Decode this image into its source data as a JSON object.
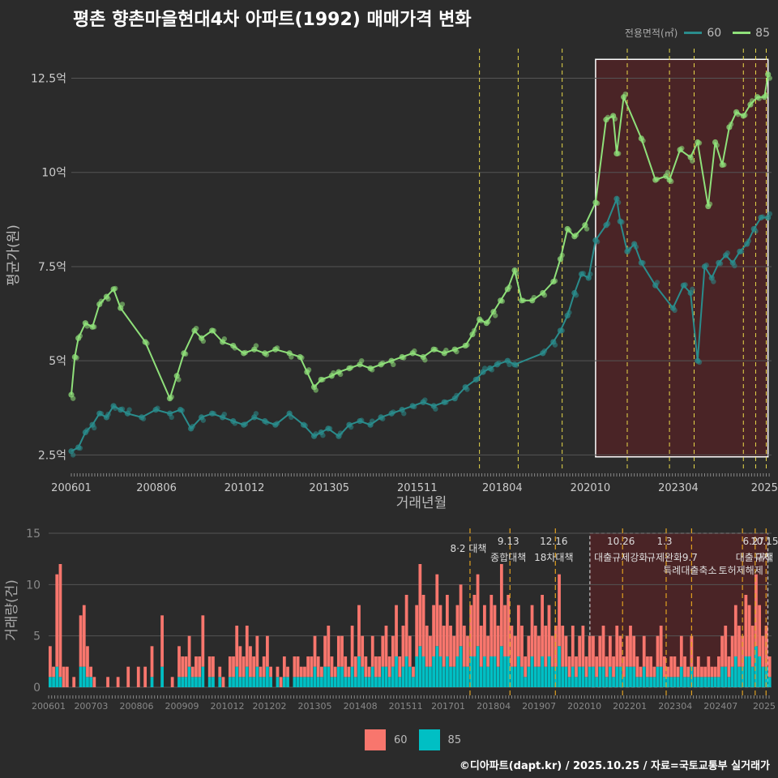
{
  "title": "평촌 향촌마을현대4차 아파트(1992) 매매가격 변화",
  "legend": {
    "title": "전용면적(㎡)",
    "items": [
      {
        "label": "60",
        "line_color": "#2a8c8c",
        "bar_color": "#f8766d"
      },
      {
        "label": "85",
        "line_color": "#8fe07a",
        "bar_color": "#00bfc4"
      }
    ]
  },
  "footer": "©디아파트(dapt.kr) / 2025.10.25 / 자료=국토교통부 실거래가",
  "chart_data": [
    {
      "type": "line",
      "title": "평균가(원) over 거래년월",
      "xlabel": "거래년월",
      "ylabel": "평균가(원)",
      "ylim": [
        2.1,
        13.5
      ],
      "yticks": [
        2.5,
        5,
        7.5,
        10,
        12.5
      ],
      "ytick_labels": [
        "2.5억",
        "5억",
        "7.5억",
        "10억",
        "12.5억"
      ],
      "xticks": [
        "200601",
        "200806",
        "201012",
        "201305",
        "201511",
        "201804",
        "202010",
        "202304",
        "2025"
      ],
      "highlight_region": {
        "start": 2020.9,
        "end": 2025.8
      },
      "policy_dates": [
        2017.6,
        2018.7,
        2019.95,
        2021.8,
        2023.0,
        2023.7,
        2025.1,
        2025.45,
        2025.75
      ],
      "series": [
        {
          "name": "60",
          "x": [
            2006.0,
            2006.2,
            2006.4,
            2006.6,
            2006.8,
            2007.0,
            2007.2,
            2007.4,
            2007.6,
            2008.0,
            2008.4,
            2008.8,
            2009.1,
            2009.4,
            2009.7,
            2010.0,
            2010.3,
            2010.6,
            2010.9,
            2011.2,
            2011.5,
            2011.8,
            2012.2,
            2012.6,
            2012.9,
            2013.1,
            2013.3,
            2013.6,
            2013.9,
            2014.2,
            2014.5,
            2014.8,
            2015.1,
            2015.4,
            2015.7,
            2016.0,
            2016.3,
            2016.6,
            2016.9,
            2017.2,
            2017.5,
            2017.7,
            2017.9,
            2018.1,
            2018.4,
            2018.6,
            2019.4,
            2019.7,
            2019.9,
            2020.1,
            2020.3,
            2020.5,
            2020.7,
            2020.9,
            2021.2,
            2021.5,
            2021.6,
            2021.8,
            2022.0,
            2022.2,
            2022.6,
            2023.1,
            2023.4,
            2023.6,
            2023.8,
            2024.0,
            2024.2,
            2024.4,
            2024.6,
            2024.8,
            2025.0,
            2025.2,
            2025.4,
            2025.6,
            2025.8
          ],
          "values": [
            2.6,
            2.7,
            3.1,
            3.3,
            3.6,
            3.5,
            3.8,
            3.7,
            3.6,
            3.5,
            3.7,
            3.6,
            3.7,
            3.2,
            3.5,
            3.6,
            3.5,
            3.4,
            3.3,
            3.5,
            3.4,
            3.3,
            3.6,
            3.3,
            3.0,
            3.1,
            3.2,
            3.0,
            3.3,
            3.4,
            3.3,
            3.5,
            3.6,
            3.7,
            3.8,
            3.9,
            3.8,
            3.9,
            4.0,
            4.3,
            4.5,
            4.7,
            4.8,
            4.9,
            5.0,
            4.9,
            5.2,
            5.5,
            5.8,
            6.2,
            6.8,
            7.3,
            7.2,
            8.2,
            8.6,
            9.3,
            8.7,
            7.9,
            8.1,
            7.6,
            7.0,
            6.4,
            7.0,
            6.8,
            5.0,
            7.5,
            7.2,
            7.6,
            7.8,
            7.6,
            7.9,
            8.1,
            8.5,
            8.8,
            8.8
          ]
        },
        {
          "name": "85",
          "x": [
            2006.0,
            2006.1,
            2006.2,
            2006.4,
            2006.6,
            2006.8,
            2007.0,
            2007.2,
            2007.4,
            2008.1,
            2008.8,
            2009.0,
            2009.2,
            2009.5,
            2009.7,
            2010.0,
            2010.3,
            2010.6,
            2010.9,
            2011.2,
            2011.5,
            2011.8,
            2012.2,
            2012.5,
            2012.7,
            2012.9,
            2013.1,
            2013.4,
            2013.6,
            2013.9,
            2014.2,
            2014.5,
            2014.8,
            2015.1,
            2015.4,
            2015.7,
            2016.0,
            2016.3,
            2016.6,
            2016.9,
            2017.2,
            2017.4,
            2017.6,
            2017.8,
            2018.0,
            2018.2,
            2018.4,
            2018.6,
            2018.8,
            2019.1,
            2019.4,
            2019.7,
            2019.9,
            2020.1,
            2020.3,
            2020.6,
            2020.9,
            2021.2,
            2021.4,
            2021.5,
            2021.7,
            2022.2,
            2022.6,
            2022.9,
            2023.0,
            2023.3,
            2023.6,
            2023.8,
            2024.1,
            2024.3,
            2024.5,
            2024.7,
            2024.9,
            2025.1,
            2025.3,
            2025.5,
            2025.7,
            2025.8
          ],
          "values": [
            4.1,
            5.1,
            5.6,
            6.0,
            5.9,
            6.5,
            6.7,
            6.9,
            6.4,
            5.5,
            4.0,
            4.6,
            5.2,
            5.8,
            5.6,
            5.8,
            5.5,
            5.4,
            5.2,
            5.3,
            5.2,
            5.3,
            5.2,
            5.1,
            4.7,
            4.3,
            4.5,
            4.6,
            4.7,
            4.8,
            4.9,
            4.8,
            4.9,
            5.0,
            5.1,
            5.2,
            5.1,
            5.3,
            5.2,
            5.3,
            5.4,
            5.7,
            6.1,
            6.0,
            6.3,
            6.6,
            6.9,
            7.4,
            6.6,
            6.6,
            6.8,
            7.1,
            7.7,
            8.5,
            8.3,
            8.6,
            9.2,
            11.4,
            11.5,
            10.5,
            12.0,
            10.9,
            9.8,
            9.9,
            9.8,
            10.6,
            10.4,
            10.8,
            9.1,
            10.8,
            10.2,
            11.2,
            11.6,
            11.5,
            11.8,
            12.0,
            12.0,
            12.6
          ]
        }
      ]
    },
    {
      "type": "bar",
      "title": "거래량(건) over 거래년월",
      "xlabel": "거래년월",
      "ylabel": "거래량(건)",
      "ylim": [
        0,
        15
      ],
      "yticks": [
        0,
        5,
        10,
        15
      ],
      "ytick_labels": [
        "0",
        "5",
        "10",
        "15"
      ],
      "xticks": [
        "200601",
        "200703",
        "200806",
        "200909",
        "201012",
        "201202",
        "201305",
        "201408",
        "201511",
        "201701",
        "201804",
        "201907",
        "202010",
        "202201",
        "202304",
        "202407",
        "2025"
      ],
      "highlight_region": {
        "start": 2020.9,
        "end": 2025.8
      },
      "policy_dates": [
        2017.6,
        2018.7,
        2019.95,
        2021.8,
        2023.0,
        2023.7,
        2025.1,
        2025.45,
        2025.75
      ],
      "annotations": [
        {
          "x": 2017.6,
          "level": 1,
          "label": "8·2 대책"
        },
        {
          "x": 2018.7,
          "level": 0,
          "label": "9.13"
        },
        {
          "x": 2018.7,
          "level": 2,
          "label": "종합대책"
        },
        {
          "x": 2019.95,
          "level": 0,
          "label": "12.16"
        },
        {
          "x": 2019.95,
          "level": 2,
          "label": "18차대책"
        },
        {
          "x": 2021.8,
          "level": 0,
          "label": "10.26"
        },
        {
          "x": 2021.8,
          "level": 2,
          "label": "대출규제강화"
        },
        {
          "x": 2023.0,
          "level": 0,
          "label": "1.3"
        },
        {
          "x": 2023.0,
          "level": 2,
          "label": "규제완화"
        },
        {
          "x": 2023.7,
          "level": 2,
          "label": "9.7"
        },
        {
          "x": 2023.7,
          "level": 3,
          "label": "특례대출축소"
        },
        {
          "x": 2025.1,
          "level": 3,
          "label": "토허제해제"
        },
        {
          "x": 2025.45,
          "level": 0,
          "label": "6.27"
        },
        {
          "x": 2025.45,
          "level": 2,
          "label": "대출규제"
        },
        {
          "x": 2025.75,
          "level": 0,
          "label": "10.15"
        },
        {
          "x": 2025.75,
          "level": 2,
          "label": "대책"
        }
      ],
      "series": [
        {
          "name": "60",
          "values": [
            3,
            1,
            9,
            11,
            2,
            2,
            0,
            1,
            0,
            5,
            6,
            3,
            1,
            1,
            0,
            0,
            0,
            1,
            0,
            0,
            1,
            0,
            0,
            2,
            0,
            0,
            2,
            0,
            2,
            0,
            3,
            0,
            0,
            5,
            0,
            0,
            1,
            0,
            3,
            2,
            2,
            3,
            1,
            2,
            2,
            5,
            0,
            2,
            2,
            0,
            1,
            1,
            0,
            2,
            2,
            4,
            3,
            2,
            4,
            3,
            2,
            3,
            1,
            2,
            3,
            1,
            0,
            1,
            1,
            2,
            1,
            0,
            2,
            2,
            1,
            1,
            2,
            2,
            3,
            2,
            1,
            3,
            4,
            2,
            1,
            3,
            3,
            2,
            1,
            4,
            2,
            5,
            3,
            2,
            1,
            3,
            2,
            2,
            3,
            4,
            2,
            3,
            5,
            2,
            4,
            6,
            3,
            1,
            5,
            8,
            6,
            4,
            3,
            5,
            7,
            5,
            4,
            6,
            4,
            3,
            5,
            6,
            4,
            3,
            5,
            6,
            7,
            4,
            5,
            3,
            6,
            5,
            4,
            8,
            5,
            6,
            4,
            3,
            5,
            4,
            2,
            3,
            5,
            4,
            3,
            6,
            4,
            5,
            3,
            4,
            7,
            4,
            3,
            2,
            4,
            2,
            3,
            4,
            2,
            3,
            3,
            2,
            3,
            4,
            2,
            3,
            2,
            4,
            3,
            2,
            3,
            4,
            3,
            2,
            1,
            3,
            2,
            2,
            1,
            3,
            4,
            2,
            1,
            2,
            2,
            1,
            3,
            2,
            1,
            3,
            1,
            2,
            1,
            1,
            2,
            1,
            1,
            2,
            3,
            4,
            2,
            3,
            5,
            4,
            3,
            6,
            5,
            4,
            7,
            5,
            3,
            4,
            2
          ]
        },
        {
          "name": "85",
          "values": [
            1,
            1,
            2,
            1,
            0,
            0,
            0,
            0,
            0,
            2,
            2,
            1,
            1,
            0,
            0,
            0,
            0,
            0,
            0,
            0,
            0,
            0,
            0,
            0,
            0,
            0,
            0,
            0,
            0,
            0,
            1,
            0,
            0,
            2,
            0,
            0,
            0,
            0,
            1,
            1,
            1,
            2,
            1,
            1,
            1,
            2,
            0,
            1,
            1,
            0,
            1,
            0,
            0,
            1,
            1,
            2,
            1,
            1,
            2,
            1,
            1,
            2,
            1,
            1,
            2,
            1,
            0,
            1,
            0,
            1,
            1,
            0,
            1,
            1,
            1,
            1,
            1,
            1,
            2,
            1,
            1,
            2,
            2,
            1,
            1,
            2,
            2,
            1,
            1,
            2,
            1,
            3,
            2,
            1,
            1,
            2,
            1,
            1,
            2,
            2,
            1,
            2,
            3,
            1,
            2,
            3,
            2,
            1,
            3,
            4,
            3,
            2,
            2,
            3,
            4,
            3,
            2,
            3,
            2,
            2,
            3,
            4,
            2,
            2,
            3,
            3,
            4,
            2,
            3,
            2,
            3,
            3,
            2,
            4,
            3,
            3,
            2,
            2,
            3,
            2,
            1,
            2,
            3,
            2,
            2,
            3,
            2,
            3,
            2,
            2,
            4,
            2,
            2,
            1,
            2,
            1,
            2,
            2,
            1,
            2,
            2,
            1,
            2,
            2,
            1,
            2,
            1,
            2,
            2,
            1,
            2,
            2,
            2,
            1,
            1,
            2,
            1,
            1,
            1,
            2,
            2,
            1,
            1,
            1,
            1,
            1,
            2,
            1,
            1,
            2,
            1,
            1,
            1,
            1,
            1,
            1,
            1,
            1,
            2,
            2,
            1,
            2,
            3,
            2,
            2,
            3,
            3,
            2,
            4,
            3,
            2,
            2,
            1
          ]
        }
      ]
    }
  ]
}
